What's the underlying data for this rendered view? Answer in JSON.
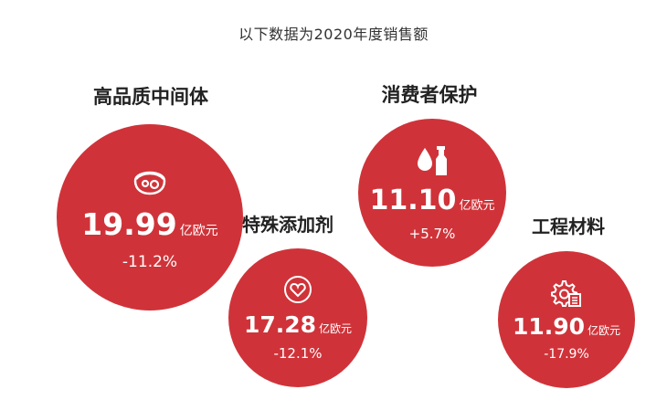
{
  "subtitle": "以下数据为2020年度销售额",
  "segments": [
    {
      "title": "高品质中间体",
      "value": "19.99",
      "unit": "亿欧元",
      "change": "-11.2%",
      "icon": "face-mask-icon"
    },
    {
      "title": "特殊添加剂",
      "value": "17.28",
      "unit": "亿欧元",
      "change": "-12.1%",
      "icon": "heart-icon"
    },
    {
      "title": "消费者保护",
      "value": "11.10",
      "unit": "亿欧元",
      "change": "+5.7%",
      "icon": "drop-bottle-icon"
    },
    {
      "title": "工程材料",
      "value": "11.90",
      "unit": "亿欧元",
      "change": "-17.9%",
      "icon": "gear-document-icon"
    }
  ],
  "colors": {
    "bubble": "#cf3339",
    "text_on_bubble": "#ffffff"
  }
}
